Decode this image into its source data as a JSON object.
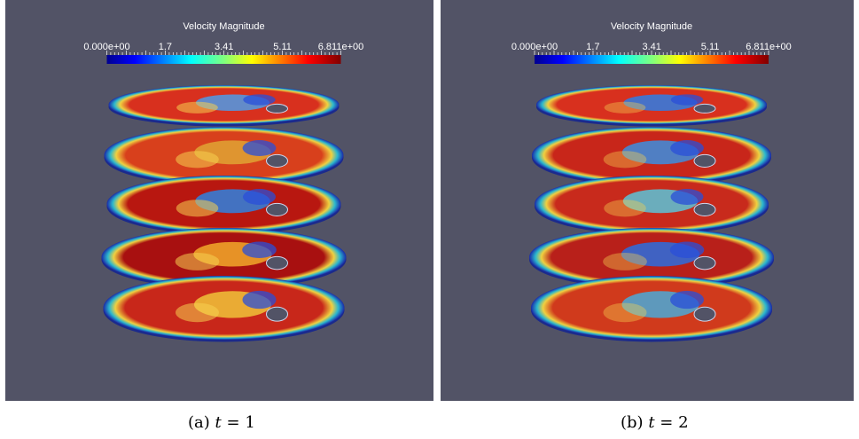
{
  "panels": [
    {
      "id": "a",
      "label": "(a)",
      "time_var": "t",
      "equals": "=",
      "time_value": "1",
      "colorbar": {
        "title": "Velocity Magnitude",
        "ticks": [
          "0.000e+00",
          "1.7",
          "3.41",
          "5.11",
          "6.811e+00"
        ],
        "tick_values": [
          0,
          1.7,
          3.41,
          5.11,
          6.811
        ],
        "range": [
          0,
          6.811
        ],
        "colormap": "jet"
      },
      "slices": [
        {
          "core": "#d8301e",
          "blob": "#4f9be8",
          "ring": "#2bb7ce"
        },
        {
          "core": "#d8401c",
          "blob": "#e0a534",
          "ring": "#2bb7ce"
        },
        {
          "core": "#b81710",
          "blob": "#2e82e0",
          "ring": "#2bb7ce"
        },
        {
          "core": "#a81010",
          "blob": "#f2a92a",
          "ring": "#2bb7ce"
        },
        {
          "core": "#c8271a",
          "blob": "#f0c33a",
          "ring": "#2bb7ce"
        }
      ]
    },
    {
      "id": "b",
      "label": "(b)",
      "time_var": "t",
      "equals": "=",
      "time_value": "2",
      "colorbar": {
        "title": "Velocity Magnitude",
        "ticks": [
          "0.000e+00",
          "1.7",
          "3.41",
          "5.11",
          "6.811e+00"
        ],
        "tick_values": [
          0,
          1.7,
          3.41,
          5.11,
          6.811
        ],
        "range": [
          0,
          6.811
        ],
        "colormap": "jet"
      },
      "slices": [
        {
          "core": "#d8301e",
          "blob": "#2e7ee6",
          "ring": "#2bb7ce"
        },
        {
          "core": "#c8261a",
          "blob": "#3b8fe2",
          "ring": "#2bb7ce"
        },
        {
          "core": "#c82a1c",
          "blob": "#5ac4d8",
          "ring": "#2bb7ce"
        },
        {
          "core": "#b8201a",
          "blob": "#2a6fe0",
          "ring": "#2bb7ce"
        },
        {
          "core": "#d03a1c",
          "blob": "#4aaad8",
          "ring": "#2bb7ce"
        }
      ]
    }
  ],
  "colors": {
    "background": "#525366",
    "page": "#ffffff"
  }
}
